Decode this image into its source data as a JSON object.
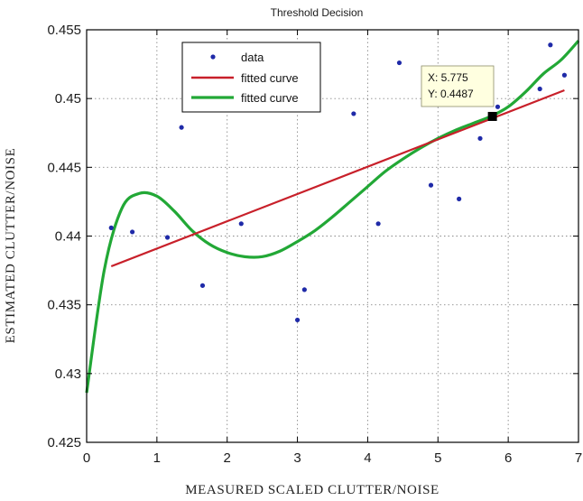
{
  "chart_data": {
    "type": "scatter",
    "title": "Threshold Decision",
    "xlabel": "MEASURED SCALED CLUTTER/NOISE",
    "ylabel": "ESTIMATED CLUTTER/NOISE",
    "xlim": [
      0,
      7
    ],
    "ylim": [
      0.425,
      0.455
    ],
    "x_ticks": [
      "0",
      "1",
      "2",
      "3",
      "4",
      "5",
      "6",
      "7"
    ],
    "y_ticks": [
      "0.425",
      "0.43",
      "0.435",
      "0.44",
      "0.445",
      "0.45",
      "0.455"
    ],
    "grid": true,
    "legend_position": "top-left",
    "series": [
      {
        "name": "data",
        "kind": "scatter",
        "color": "#1f2aa8",
        "x": [
          0.35,
          0.65,
          1.15,
          1.35,
          1.65,
          2.2,
          3.0,
          3.1,
          3.8,
          4.15,
          4.45,
          4.9,
          5.3,
          5.6,
          5.85,
          6.45,
          6.6,
          6.8
        ],
        "y": [
          0.4406,
          0.4403,
          0.4399,
          0.4479,
          0.4364,
          0.4409,
          0.4339,
          0.4361,
          0.4489,
          0.4409,
          0.4526,
          0.4437,
          0.4427,
          0.4471,
          0.4494,
          0.4507,
          0.4539,
          0.4517
        ]
      },
      {
        "name": "fitted curve",
        "kind": "line",
        "color": "#c8202a",
        "x": [
          0.35,
          6.8
        ],
        "y": [
          0.4378,
          0.4506
        ]
      },
      {
        "name": "fitted curve",
        "kind": "line",
        "color": "#22a836",
        "x": [
          0,
          0.25,
          0.5,
          0.75,
          1.0,
          1.25,
          1.5,
          1.75,
          2.0,
          2.25,
          2.5,
          2.75,
          3.0,
          3.25,
          3.5,
          3.75,
          4.0,
          4.25,
          4.5,
          4.75,
          5.0,
          5.25,
          5.5,
          5.75,
          6.0,
          6.25,
          6.5,
          6.75,
          7.0
        ],
        "y": [
          0.4286,
          0.4375,
          0.442,
          0.4431,
          0.4429,
          0.4418,
          0.4404,
          0.4394,
          0.4388,
          0.4385,
          0.4385,
          0.4389,
          0.4396,
          0.4404,
          0.4414,
          0.4425,
          0.4436,
          0.4447,
          0.4456,
          0.4464,
          0.4471,
          0.4477,
          0.4482,
          0.4487,
          0.4494,
          0.4505,
          0.4518,
          0.4528,
          0.4542
        ]
      }
    ],
    "datatip": {
      "x": 5.775,
      "y": 0.4487,
      "x_label": "X: 5.775",
      "y_label": "Y: 0.4487"
    }
  }
}
